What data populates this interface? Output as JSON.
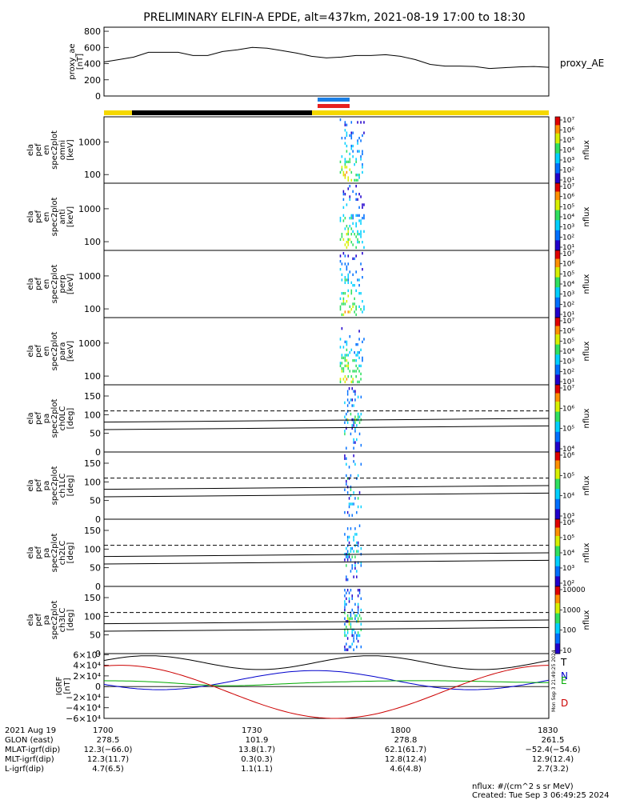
{
  "title": "PRELIMINARY ELFIN-A EPDE, alt=437km, 2021-08-19 17:00 to 18:30",
  "colors": {
    "orbit_day": "#f5d800",
    "orbit_night": "#000000",
    "science_bar_blue": "#1a7fe6",
    "science_bar_red": "#e62020",
    "bx": "#000000",
    "by": "#0000cc",
    "bz": "#00aa00",
    "bt": "#cc0000"
  },
  "chart_data": [
    {
      "type": "line",
      "panel": "proxy_ae",
      "ylabel": [
        "proxy_ae",
        "[nT]"
      ],
      "legend": "proxy_AE",
      "ylim": [
        0,
        850
      ],
      "yticks": [
        "800",
        "600",
        "400",
        "200",
        "0"
      ],
      "x_hours": [
        17.0,
        17.05,
        17.1,
        17.15,
        17.2,
        17.25,
        17.3,
        17.35,
        17.4,
        17.45,
        17.5,
        17.55,
        17.6,
        17.65,
        17.7,
        17.75,
        17.8,
        17.85,
        17.9,
        17.95,
        18.0,
        18.05,
        18.1,
        18.15,
        18.2,
        18.25,
        18.3,
        18.35,
        18.4,
        18.45,
        18.5
      ],
      "y": [
        420,
        450,
        480,
        540,
        540,
        540,
        500,
        500,
        550,
        570,
        600,
        590,
        560,
        530,
        490,
        470,
        480,
        500,
        500,
        510,
        490,
        450,
        390,
        370,
        370,
        365,
        340,
        350,
        360,
        365,
        355
      ]
    },
    {
      "type": "heatmap",
      "panel": "spec_omni",
      "ylabel": [
        "ela",
        "pef",
        "en",
        "spec2plot",
        "omni",
        "[keV]"
      ],
      "yticks": [
        "1000",
        "100"
      ],
      "zlabel": "nflux",
      "zticks": [
        "10⁷",
        "10⁶",
        "10⁵",
        "10⁴",
        "10³",
        "10²",
        "10¹"
      ]
    },
    {
      "type": "heatmap",
      "panel": "spec_anti",
      "ylabel": [
        "ela",
        "pef",
        "en",
        "spec2plot",
        "anti",
        "[keV]"
      ],
      "yticks": [
        "1000",
        "100"
      ],
      "zlabel": "nflux",
      "zticks": [
        "10⁷",
        "10⁶",
        "10⁵",
        "10⁴",
        "10³",
        "10²",
        "10¹"
      ]
    },
    {
      "type": "heatmap",
      "panel": "spec_perp",
      "ylabel": [
        "ela",
        "pef",
        "en",
        "spec2plot",
        "perp",
        "[keV]"
      ],
      "yticks": [
        "1000",
        "100"
      ],
      "zlabel": "nflux",
      "zticks": [
        "10⁷",
        "10⁶",
        "10⁵",
        "10⁴",
        "10³",
        "10²",
        "10¹"
      ]
    },
    {
      "type": "heatmap",
      "panel": "spec_para",
      "ylabel": [
        "ela",
        "pef",
        "en",
        "spec2plot",
        "para",
        "[keV]"
      ],
      "yticks": [
        "1000",
        "100"
      ],
      "zlabel": "nflux",
      "zticks": [
        "10⁷",
        "10⁶",
        "10⁵",
        "10⁴",
        "10³",
        "10²",
        "10¹"
      ]
    },
    {
      "type": "heatmap",
      "panel": "pa_ch0",
      "ylabel": [
        "ela",
        "pef",
        "pa",
        "spec2plot",
        "ch0LC",
        "[deg]"
      ],
      "yticks": [
        "150",
        "100",
        "50",
        "0"
      ],
      "zlabel": "nflux",
      "zticks": [
        "10⁷",
        "10⁶",
        "10⁵",
        "10⁴"
      ]
    },
    {
      "type": "heatmap",
      "panel": "pa_ch1",
      "ylabel": [
        "ela",
        "pef",
        "pa",
        "spec2plot",
        "ch1LC",
        "[deg]"
      ],
      "yticks": [
        "150",
        "100",
        "50",
        "0"
      ],
      "zlabel": "nflux",
      "zticks": [
        "10⁶",
        "10⁵",
        "10⁴",
        "10³"
      ]
    },
    {
      "type": "heatmap",
      "panel": "pa_ch2",
      "ylabel": [
        "ela",
        "pef",
        "pa",
        "spec2plot",
        "ch2LC",
        "[deg]"
      ],
      "yticks": [
        "150",
        "100",
        "50",
        "0"
      ],
      "zlabel": "nflux",
      "zticks": [
        "10⁶",
        "10⁵",
        "10⁴",
        "10³",
        "10²"
      ]
    },
    {
      "type": "heatmap",
      "panel": "pa_ch3",
      "ylabel": [
        "ela",
        "pef",
        "pa",
        "spec2plot",
        "ch3LC",
        "[deg]"
      ],
      "yticks": [
        "150",
        "100",
        "50",
        "0"
      ],
      "zlabel": "nflux",
      "zticks": [
        "10000",
        "1000",
        "100",
        "10"
      ]
    },
    {
      "type": "line",
      "panel": "igrf",
      "ylabel": [
        "IGRF",
        "[nT]"
      ],
      "ylim": [
        -60000,
        62000
      ],
      "yticks": [
        "6×10⁴",
        "4×10⁴",
        "2×10⁴",
        "0",
        "−2×10⁴",
        "−4×10⁴",
        "−6×10⁴"
      ],
      "legend": [
        "T",
        "N",
        "E",
        "D"
      ],
      "side_note": [
        "Mon Sep  3 21:49:25 2024"
      ]
    }
  ],
  "footer": {
    "date": "2021 Aug 19",
    "times": [
      "1700",
      "1730",
      "1800",
      "1830"
    ],
    "rows": [
      {
        "label": "GLON (east)",
        "values": [
          "278.5",
          "101.9",
          "278.8",
          "261.5"
        ]
      },
      {
        "label": "MLAT-igrf(dip)",
        "values": [
          "12.3(−66.0)",
          "13.8(1.7)",
          "62.1(61.7)",
          "−52.4(−54.6)"
        ]
      },
      {
        "label": "MLT-igrf(dip)",
        "values": [
          "12.3(11.7)",
          "0.3(0.3)",
          "12.8(12.4)",
          "12.9(12.4)"
        ]
      },
      {
        "label": "L-igrf(dip)",
        "values": [
          "4.7(6.5)",
          "1.1(1.1)",
          "4.6(4.8)",
          "2.7(3.2)"
        ]
      }
    ],
    "units": "nflux: #/(cm^2 s sr MeV)",
    "created": "Created: Tue Sep  3 06:49:25 2024"
  }
}
